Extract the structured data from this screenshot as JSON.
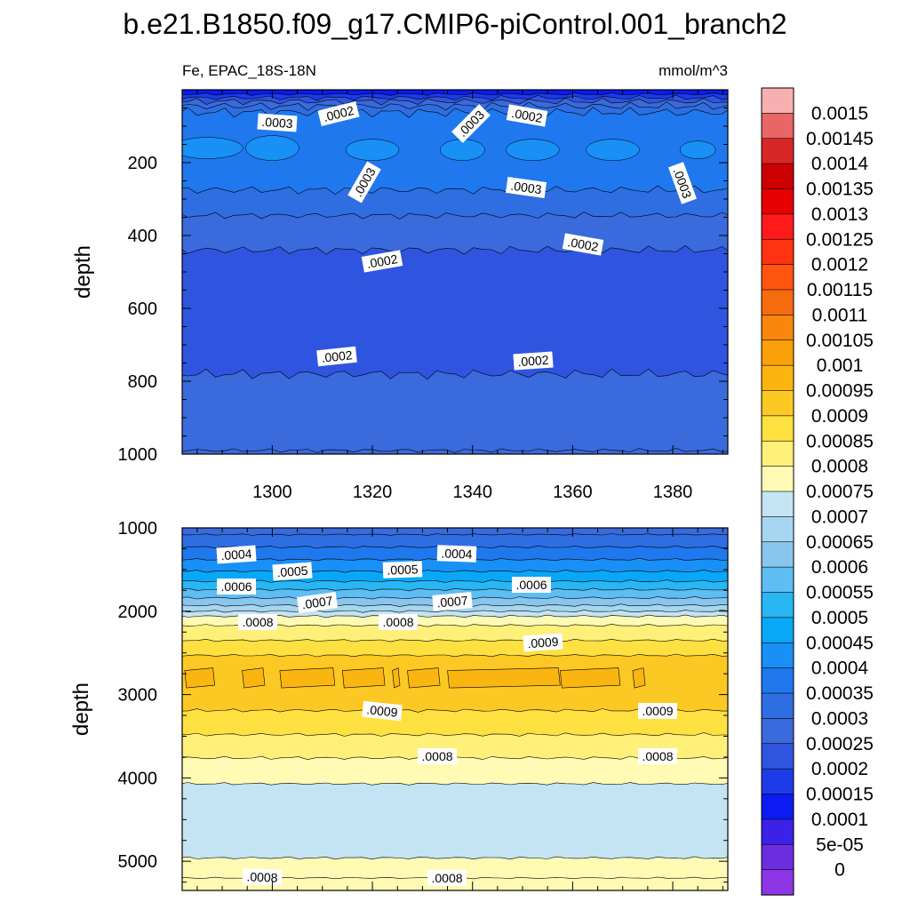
{
  "chart_data": {
    "type": "contour",
    "title": "b.e21.B1850.f09_g17.CMIP6-piControl.001_branch2",
    "variable_label": "Fe, EPAC_18S-18N",
    "units_label": "mmol/m^3",
    "panels": [
      {
        "name": "upper",
        "ylabel": "depth",
        "ylim": [
          1000,
          0
        ],
        "xlim": [
          1282,
          1391
        ],
        "yticks": [
          "200",
          "400",
          "600",
          "800",
          "1000"
        ],
        "xticks": [
          "1300",
          "1320",
          "1340",
          "1360",
          "1380"
        ],
        "contour_labels": [
          ".0003",
          ".0002",
          ".0003",
          ".0002",
          ".0003",
          ".0003",
          ".0003",
          ".0002",
          ".0002",
          ".0002",
          ".0002"
        ]
      },
      {
        "name": "lower",
        "ylabel": "depth",
        "ylim": [
          5350,
          1000
        ],
        "xlim": [
          1282,
          1391
        ],
        "yticks": [
          "1000",
          "2000",
          "3000",
          "4000",
          "5000"
        ],
        "contour_labels": [
          ".0004",
          ".0004",
          ".0005",
          ".0005",
          ".0006",
          ".0006",
          ".0007",
          ".0007",
          ".0008",
          ".0008",
          ".0009",
          ".0009",
          ".0009",
          ".0008",
          ".0008",
          ".0008",
          ".0008"
        ]
      }
    ],
    "colorbar": {
      "levels": [
        "0.0015",
        "0.00145",
        "0.0014",
        "0.00135",
        "0.0013",
        "0.00125",
        "0.0012",
        "0.00115",
        "0.0011",
        "0.00105",
        "0.001",
        "0.00095",
        "0.0009",
        "0.00085",
        "0.0008",
        "0.00075",
        "0.0007",
        "0.00065",
        "0.0006",
        "0.00055",
        "0.0005",
        "0.00045",
        "0.0004",
        "0.00035",
        "0.0003",
        "0.00025",
        "0.0002",
        "0.00015",
        "0.0001",
        "5e-05",
        "0"
      ],
      "colors": [
        "#f7b0b0",
        "#e86666",
        "#d92626",
        "#cc0000",
        "#e60000",
        "#ff1a1a",
        "#ff3311",
        "#ff5511",
        "#f76b0f",
        "#f9860d",
        "#f9a00b",
        "#fbb511",
        "#fcc924",
        "#fee040",
        "#fff07a",
        "#fffab4",
        "#c4e4f4",
        "#a8d6f0",
        "#88c6ee",
        "#5dbdf4",
        "#28b7f4",
        "#08a8f7",
        "#1890f6",
        "#1f78ee",
        "#2f6ee2",
        "#3a6adb",
        "#2f55e0",
        "#1d3ce8",
        "#0b1bf2",
        "#3c22e8",
        "#6a2ee0",
        "#8e36e6"
      ]
    }
  }
}
